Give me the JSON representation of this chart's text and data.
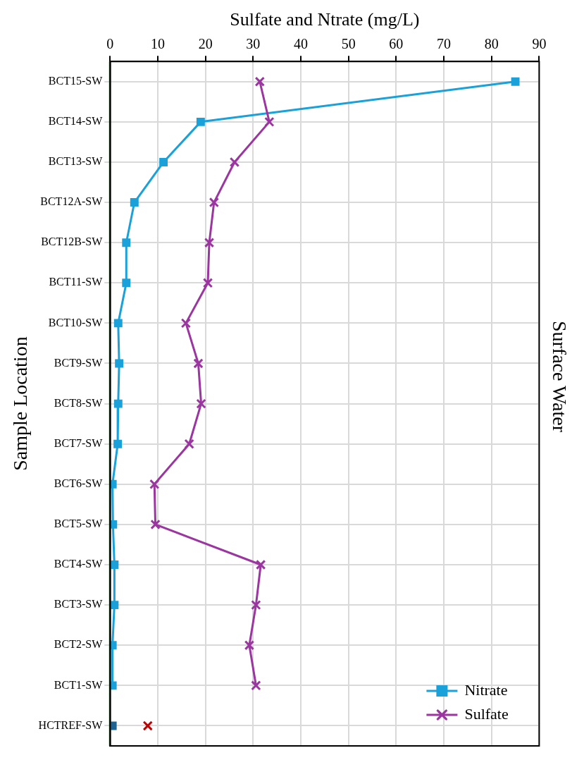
{
  "chart_data": {
    "type": "line",
    "orientation": "horizontal",
    "title": "Surface Water",
    "xlabel": "Sulfate and Ntrate (mg/L)",
    "ylabel": "Sample Location",
    "categories": [
      "BCT15-SW",
      "BCT14-SW",
      "BCT13-SW",
      "BCT12A-SW",
      "BCT12B-SW",
      "BCT11-SW",
      "BCT10-SW",
      "BCT9-SW",
      "BCT8-SW",
      "BCT7-SW",
      "BCT6-SW",
      "BCT5-SW",
      "BCT4-SW",
      "BCT3-SW",
      "BCT2-SW",
      "BCT1-SW",
      "HCTREF-SW"
    ],
    "series": [
      {
        "name": "Nitrate",
        "type": "line",
        "marker": "square",
        "color": "#1ba1d9",
        "values": [
          85,
          19,
          11.2,
          5.1,
          3.4,
          3.4,
          1.7,
          1.9,
          1.7,
          1.6,
          0.5,
          0.6,
          0.9,
          0.9,
          0.5,
          0.5,
          null
        ]
      },
      {
        "name": "Sulfate",
        "type": "line",
        "marker": "cross",
        "color": "#9b35a0",
        "values": [
          31.4,
          33.4,
          26.1,
          21.8,
          20.8,
          20.5,
          15.9,
          18.5,
          19.1,
          16.6,
          9.3,
          9.5,
          31.6,
          30.6,
          29.2,
          30.6,
          null
        ]
      },
      {
        "type": "scatter",
        "marker": "square",
        "color": "#1f6391",
        "values": [
          null,
          null,
          null,
          null,
          null,
          null,
          null,
          null,
          null,
          null,
          null,
          null,
          null,
          null,
          null,
          null,
          0.5
        ]
      },
      {
        "type": "scatter",
        "marker": "cross",
        "color": "#c00000",
        "values": [
          null,
          null,
          null,
          null,
          null,
          null,
          null,
          null,
          null,
          null,
          null,
          null,
          null,
          null,
          null,
          null,
          7.9
        ]
      }
    ],
    "xlim": [
      0,
      90
    ],
    "xticks": [
      0,
      10,
      20,
      30,
      40,
      50,
      60,
      70,
      80,
      90
    ],
    "ref_lines": [
      {
        "axis": "x",
        "value": 0,
        "color": "#1e6b1e"
      }
    ],
    "grid": true,
    "legend": "bottom right"
  }
}
